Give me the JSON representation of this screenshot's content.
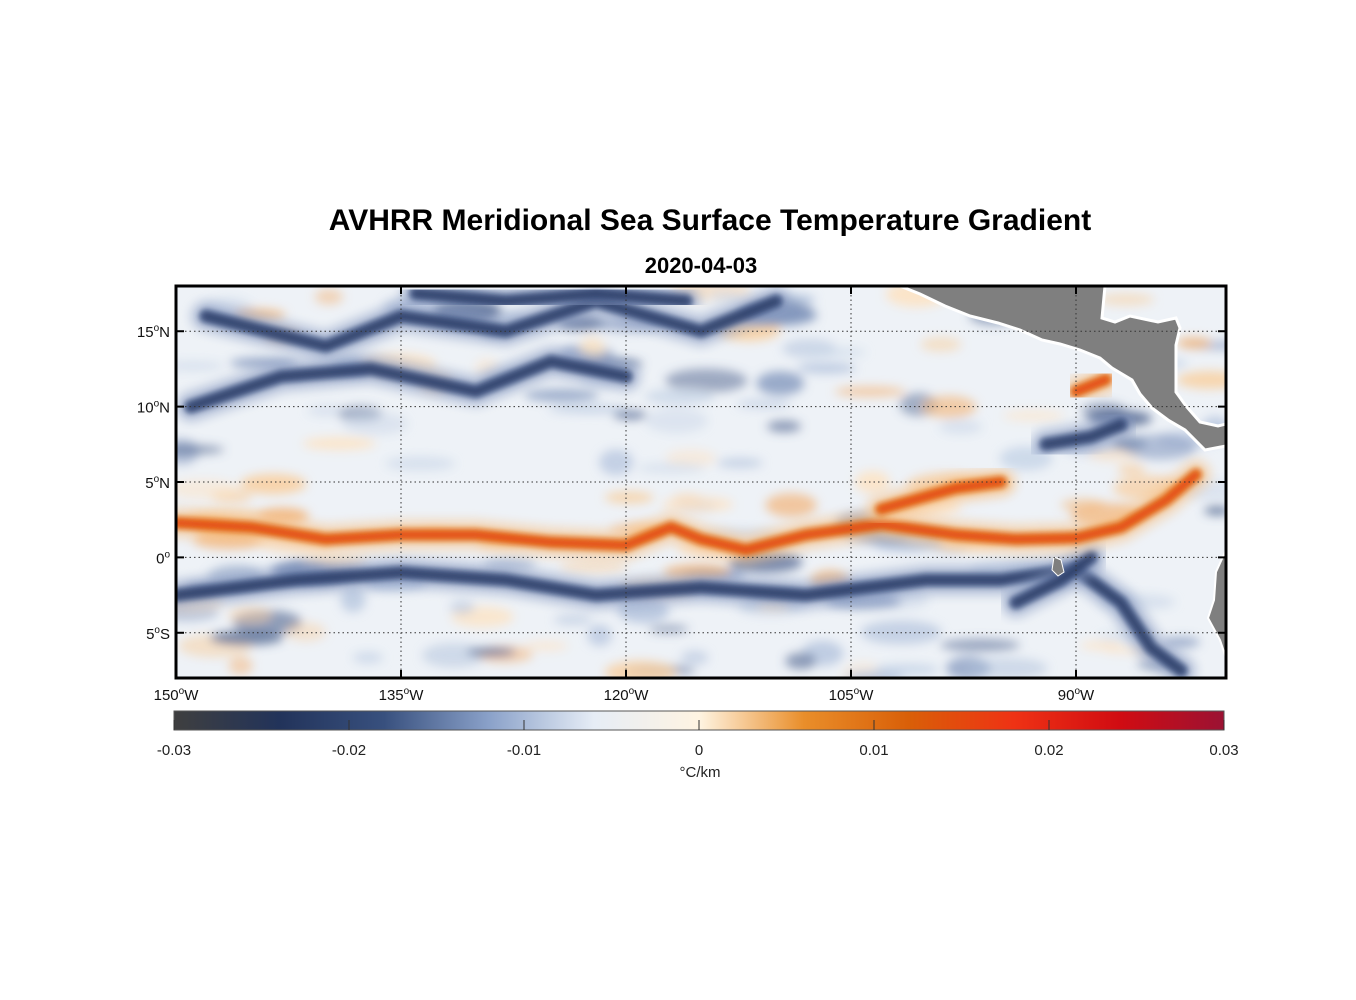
{
  "title": "AVHRR Meridional Sea Surface Temperature Gradient",
  "subtitle": "2020-04-03",
  "map": {
    "lon_range": [
      -150,
      -80
    ],
    "lat_range": [
      -8,
      18
    ],
    "grid": true,
    "land_color": "#7f7f7f",
    "lon_ticks": [
      {
        "value": -150,
        "deg": "150",
        "hemi": "W"
      },
      {
        "value": -135,
        "deg": "135",
        "hemi": "W"
      },
      {
        "value": -120,
        "deg": "120",
        "hemi": "W"
      },
      {
        "value": -105,
        "deg": "105",
        "hemi": "W"
      },
      {
        "value": -90,
        "deg": "90",
        "hemi": "W"
      }
    ],
    "lat_ticks": [
      {
        "value": 15,
        "deg": "15",
        "hemi": "N"
      },
      {
        "value": 10,
        "deg": "10",
        "hemi": "N"
      },
      {
        "value": 5,
        "deg": "5",
        "hemi": "N"
      },
      {
        "value": 0,
        "deg": "0",
        "hemi": ""
      },
      {
        "value": -5,
        "deg": "5",
        "hemi": "S"
      }
    ]
  },
  "features": {
    "cold_bands": [
      {
        "name": "north-cold-1",
        "points": [
          [
            -148,
            16
          ],
          [
            -140,
            14
          ],
          [
            -135,
            16
          ],
          [
            -128,
            15
          ],
          [
            -122,
            17
          ],
          [
            -115,
            15
          ],
          [
            -110,
            17
          ]
        ]
      },
      {
        "name": "north-cold-2",
        "points": [
          [
            -149,
            10
          ],
          [
            -143,
            12
          ],
          [
            -137,
            12.5
          ],
          [
            -130,
            11
          ],
          [
            -125,
            13
          ],
          [
            -120,
            12
          ]
        ]
      },
      {
        "name": "north-cold-3",
        "points": [
          [
            -134,
            17.5
          ],
          [
            -128,
            17
          ],
          [
            -122,
            17.5
          ],
          [
            -116,
            17
          ]
        ]
      },
      {
        "name": "equatorial-cold",
        "points": [
          [
            -150,
            -2.5
          ],
          [
            -142,
            -1.5
          ],
          [
            -135,
            -1
          ],
          [
            -128,
            -1.5
          ],
          [
            -122,
            -2.5
          ],
          [
            -115,
            -2
          ],
          [
            -108,
            -2.5
          ],
          [
            -100,
            -1.5
          ],
          [
            -95,
            -1.5
          ],
          [
            -90,
            -0.8
          ],
          [
            -87,
            -3
          ],
          [
            -85,
            -6
          ],
          [
            -83,
            -7.5
          ]
        ]
      },
      {
        "name": "coastal-cold",
        "points": [
          [
            -94,
            -3
          ],
          [
            -91,
            -1.5
          ],
          [
            -89,
            0
          ]
        ]
      },
      {
        "name": "panama-cold",
        "points": [
          [
            -92,
            7.5
          ],
          [
            -89,
            8
          ],
          [
            -87,
            8.8
          ]
        ]
      }
    ],
    "warm_bands": [
      {
        "name": "equatorial-warm",
        "points": [
          [
            -150,
            2.3
          ],
          [
            -145,
            2
          ],
          [
            -140,
            1.2
          ],
          [
            -135,
            1.5
          ],
          [
            -130,
            1.5
          ],
          [
            -125,
            1
          ],
          [
            -120,
            0.8
          ],
          [
            -117,
            2
          ],
          [
            -115,
            1.2
          ],
          [
            -112,
            0.5
          ],
          [
            -108,
            1.5
          ],
          [
            -103,
            2.2
          ],
          [
            -98,
            1.5
          ],
          [
            -94,
            1.2
          ],
          [
            -90,
            1.3
          ],
          [
            -87,
            2
          ],
          [
            -84,
            3.8
          ],
          [
            -82,
            5.5
          ]
        ]
      },
      {
        "name": "warm-branch",
        "points": [
          [
            -103,
            3.2
          ],
          [
            -98,
            4.6
          ],
          [
            -95,
            5
          ]
        ]
      },
      {
        "name": "panama-warm",
        "points": [
          [
            -90,
            11
          ],
          [
            -88,
            11.8
          ]
        ]
      }
    ]
  },
  "colorbar": {
    "min": -0.03,
    "max": 0.03,
    "ticks": [
      "-0.03",
      "-0.02",
      "-0.01",
      "0",
      "0.01",
      "0.02",
      "0.03"
    ],
    "colors": [
      "#3f3f3f",
      "#22335a",
      "#38507e",
      "#8aa1c9",
      "#e6edf6",
      "#fff4e2",
      "#e98e2a",
      "#d95f08",
      "#ef3214",
      "#d10c12",
      "#9b1233"
    ],
    "unit": "°C/km"
  }
}
